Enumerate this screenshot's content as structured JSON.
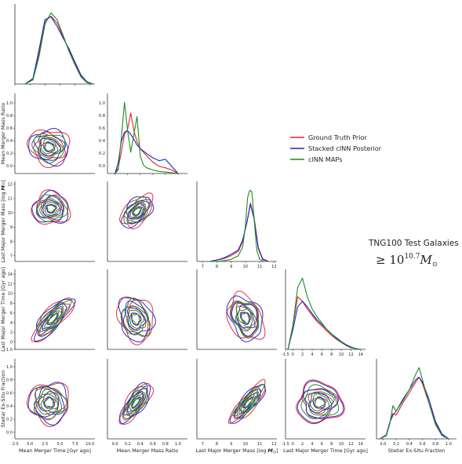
{
  "chart_data": {
    "type": "corner",
    "annotation": {
      "title": "TNG100 Test Galaxies",
      "threshold_prefix": "≥ 10",
      "threshold_exponent": "10.7",
      "threshold_symbol": "M",
      "threshold_subscript": "⊙"
    },
    "legend": {
      "placement": "right",
      "entries": [
        {
          "name": "Ground Truth Prior",
          "color": "#e4262a"
        },
        {
          "name": "Stacked cINN Posterior",
          "color": "#2222cc"
        },
        {
          "name": "cINN MAPs",
          "color": "#1c8c1c"
        }
      ]
    },
    "variables": [
      {
        "key": "merger_time",
        "label": "Mean Merger Time [Gyr ago]",
        "range": [
          -2.5,
          10.8
        ],
        "ticks": [
          -2.5,
          0.0,
          2.5,
          5.0,
          7.5,
          10.0
        ],
        "tick_labels": [
          "-2.5",
          "0.0",
          "2.5",
          "5.0",
          "7.5",
          "10.0"
        ]
      },
      {
        "key": "mass_ratio",
        "label": "Mean Merger Mass Ratio",
        "range": [
          -0.12,
          1.15
        ],
        "ticks": [
          0.0,
          0.2,
          0.4,
          0.6,
          0.8,
          1.0
        ],
        "tick_labels": [
          "0.0",
          "0.2",
          "0.4",
          "0.6",
          "0.8",
          "1.0"
        ]
      },
      {
        "key": "merger_mass",
        "label_main": "Last Major Merger Mass [log ",
        "label_sym": "M",
        "label_sub": "⊙",
        "label_end": "]",
        "range": [
          6.6,
          12.2
        ],
        "ticks": [
          7,
          8,
          9,
          10,
          11,
          12
        ],
        "tick_labels": [
          "7",
          "8",
          "9",
          "10",
          "11",
          "12"
        ]
      },
      {
        "key": "merger_lookback",
        "label": "Last Major Merger Time [Gyr ago]",
        "range": [
          -1.5,
          15
        ],
        "ticks": [
          -1.5,
          0,
          2,
          4,
          6,
          8,
          10,
          12,
          14
        ],
        "tick_labels": [
          "-1.5",
          "0",
          "2",
          "4",
          "6",
          "8",
          "10",
          "12",
          "14"
        ]
      },
      {
        "key": "exsitu",
        "label": "Stellar Ex-Situ Fraction",
        "range": [
          -0.1,
          1.12
        ],
        "ticks": [
          0.0,
          0.2,
          0.4,
          0.6,
          0.8,
          1.0
        ],
        "tick_labels": [
          "0.0",
          "0.2",
          "0.4",
          "0.6",
          "0.8",
          "1.0"
        ]
      }
    ],
    "marginals": [
      {
        "var": 0,
        "series": [
          {
            "color": "#e4262a",
            "x": [
              -0.8,
              0.5,
              1.5,
              2.5,
              3.5,
              4.5,
              5.5,
              6.5,
              7.5,
              8.5,
              9.5,
              10.5
            ],
            "y": [
              0.0,
              0.08,
              0.45,
              0.92,
              1.0,
              0.9,
              0.7,
              0.5,
              0.3,
              0.12,
              0.03,
              0.0
            ]
          },
          {
            "color": "#2222cc",
            "x": [
              -0.8,
              0.5,
              1.5,
              2.5,
              3.5,
              4.5,
              5.5,
              6.5,
              7.5,
              8.5,
              9.5,
              10.5
            ],
            "y": [
              0.0,
              0.08,
              0.5,
              0.95,
              0.99,
              0.85,
              0.68,
              0.52,
              0.32,
              0.13,
              0.03,
              0.0
            ]
          },
          {
            "color": "#1c8c1c",
            "x": [
              -0.8,
              0.5,
              1.5,
              2.5,
              3.5,
              4.5,
              5.5,
              6.5,
              7.5,
              8.5,
              9.5,
              10.5
            ],
            "y": [
              0.0,
              0.06,
              0.4,
              0.88,
              1.05,
              0.95,
              0.72,
              0.48,
              0.28,
              0.1,
              0.02,
              0.0
            ]
          }
        ]
      },
      {
        "var": 1,
        "series": [
          {
            "color": "#e4262a",
            "x": [
              0.0,
              0.05,
              0.1,
              0.15,
              0.2,
              0.25,
              0.3,
              0.35,
              0.4,
              0.5,
              0.6,
              0.7,
              0.8,
              0.9,
              1.0
            ],
            "y": [
              0.0,
              0.08,
              0.3,
              0.55,
              0.62,
              0.85,
              0.6,
              0.45,
              0.35,
              0.25,
              0.16,
              0.1,
              0.08,
              0.05,
              0.0
            ]
          },
          {
            "color": "#2222cc",
            "x": [
              0.0,
              0.05,
              0.1,
              0.15,
              0.2,
              0.25,
              0.3,
              0.35,
              0.4,
              0.5,
              0.6,
              0.7,
              0.8,
              0.9,
              1.0
            ],
            "y": [
              0.0,
              0.15,
              0.45,
              0.58,
              0.6,
              0.55,
              0.48,
              0.4,
              0.35,
              0.28,
              0.22,
              0.18,
              0.2,
              0.1,
              0.0
            ]
          },
          {
            "color": "#1c8c1c",
            "x": [
              0.0,
              0.05,
              0.1,
              0.15,
              0.2,
              0.25,
              0.3,
              0.35,
              0.4,
              0.45,
              0.5,
              0.6,
              0.7,
              0.8,
              0.9,
              1.0
            ],
            "y": [
              0.0,
              0.05,
              0.5,
              1.0,
              0.6,
              0.3,
              0.55,
              0.8,
              0.25,
              0.12,
              0.08,
              0.05,
              0.03,
              0.02,
              0.01,
              0.0
            ]
          }
        ]
      },
      {
        "var": 2,
        "series": [
          {
            "color": "#e4262a",
            "x": [
              7.5,
              8.0,
              8.5,
              9.0,
              9.5,
              9.8,
              10.1,
              10.35,
              10.6,
              10.9,
              11.2,
              11.6
            ],
            "y": [
              0.0,
              0.02,
              0.04,
              0.08,
              0.14,
              0.28,
              0.55,
              0.82,
              0.62,
              0.2,
              0.04,
              0.0
            ]
          },
          {
            "color": "#2222cc",
            "x": [
              7.5,
              8.0,
              8.5,
              9.0,
              9.5,
              9.8,
              10.1,
              10.35,
              10.6,
              10.9,
              11.2,
              11.6
            ],
            "y": [
              0.0,
              0.02,
              0.05,
              0.1,
              0.16,
              0.3,
              0.55,
              0.8,
              0.6,
              0.18,
              0.03,
              0.0
            ]
          },
          {
            "color": "#1c8c1c",
            "x": [
              7.5,
              8.0,
              8.5,
              9.0,
              9.5,
              9.8,
              10.0,
              10.15,
              10.3,
              10.45,
              10.6,
              10.8,
              11.0,
              11.3
            ],
            "y": [
              0.0,
              0.0,
              0.01,
              0.03,
              0.08,
              0.2,
              0.5,
              0.9,
              1.0,
              0.98,
              0.6,
              0.15,
              0.03,
              0.0
            ]
          }
        ]
      },
      {
        "var": 3,
        "series": [
          {
            "color": "#e4262a",
            "x": [
              -1.0,
              0.0,
              1.0,
              2.0,
              3.0,
              4.0,
              5.0,
              6.0,
              7.0,
              8.0,
              9.0,
              10.0,
              11.0,
              12.0,
              13.0,
              14.0
            ],
            "y": [
              0.0,
              0.3,
              0.68,
              0.62,
              0.52,
              0.44,
              0.36,
              0.3,
              0.24,
              0.18,
              0.13,
              0.09,
              0.06,
              0.03,
              0.01,
              0.0
            ]
          },
          {
            "color": "#2222cc",
            "x": [
              -1.0,
              0.0,
              1.0,
              2.0,
              3.0,
              4.0,
              5.0,
              6.0,
              7.0,
              8.0,
              9.0,
              10.0,
              11.0,
              12.0,
              13.0,
              14.0
            ],
            "y": [
              0.0,
              0.25,
              0.55,
              0.62,
              0.55,
              0.46,
              0.38,
              0.32,
              0.26,
              0.2,
              0.15,
              0.1,
              0.06,
              0.03,
              0.01,
              0.0
            ]
          },
          {
            "color": "#1c8c1c",
            "x": [
              -1.0,
              0.0,
              1.0,
              2.0,
              3.0,
              4.0,
              5.0,
              6.0,
              7.0,
              8.0,
              9.0,
              10.0,
              11.0,
              12.0,
              13.0,
              14.0
            ],
            "y": [
              0.0,
              0.3,
              0.8,
              0.92,
              0.68,
              0.52,
              0.42,
              0.34,
              0.26,
              0.2,
              0.14,
              0.09,
              0.05,
              0.02,
              0.01,
              0.0
            ]
          }
        ]
      },
      {
        "var": 4,
        "series": [
          {
            "color": "#e4262a",
            "x": [
              -0.05,
              0.05,
              0.1,
              0.15,
              0.2,
              0.3,
              0.4,
              0.5,
              0.55,
              0.6,
              0.7,
              0.8,
              0.9,
              1.0
            ],
            "y": [
              0.0,
              0.05,
              0.2,
              0.32,
              0.3,
              0.45,
              0.58,
              0.72,
              0.78,
              0.7,
              0.45,
              0.2,
              0.05,
              0.0
            ]
          },
          {
            "color": "#2222cc",
            "x": [
              -0.05,
              0.05,
              0.1,
              0.15,
              0.2,
              0.3,
              0.4,
              0.5,
              0.55,
              0.6,
              0.7,
              0.8,
              0.9,
              1.0
            ],
            "y": [
              0.0,
              0.05,
              0.2,
              0.3,
              0.35,
              0.48,
              0.62,
              0.75,
              0.78,
              0.72,
              0.5,
              0.22,
              0.06,
              0.0
            ]
          },
          {
            "color": "#1c8c1c",
            "x": [
              -0.05,
              0.05,
              0.1,
              0.15,
              0.2,
              0.3,
              0.4,
              0.5,
              0.55,
              0.6,
              0.7,
              0.8,
              0.9,
              1.0
            ],
            "y": [
              0.0,
              0.04,
              0.18,
              0.42,
              0.35,
              0.5,
              0.62,
              0.82,
              0.9,
              0.75,
              0.45,
              0.18,
              0.04,
              0.0
            ]
          }
        ]
      }
    ],
    "joint_contours": [
      {
        "x_var": 0,
        "y_var": 1,
        "center": [
          3.2,
          0.3
        ],
        "spread": [
          2.4,
          0.2
        ],
        "corr": -0.1
      },
      {
        "x_var": 0,
        "y_var": 2,
        "center": [
          3.5,
          10.3
        ],
        "spread": [
          2.2,
          0.8
        ],
        "corr": 0.0
      },
      {
        "x_var": 1,
        "y_var": 2,
        "center": [
          0.35,
          10.1
        ],
        "spread": [
          0.18,
          0.8
        ],
        "corr": 0.5
      },
      {
        "x_var": 0,
        "y_var": 3,
        "center": [
          3.8,
          4.8
        ],
        "spread": [
          2.4,
          3.2
        ],
        "corr": 0.8
      },
      {
        "x_var": 1,
        "y_var": 3,
        "center": [
          0.33,
          4.8
        ],
        "spread": [
          0.2,
          3.3
        ],
        "corr": -0.2
      },
      {
        "x_var": 2,
        "y_var": 3,
        "center": [
          10.0,
          5.0
        ],
        "spread": [
          0.9,
          3.3
        ],
        "corr": -0.3
      },
      {
        "x_var": 0,
        "y_var": 4,
        "center": [
          3.2,
          0.45
        ],
        "spread": [
          2.4,
          0.22
        ],
        "corr": 0.0
      },
      {
        "x_var": 1,
        "y_var": 4,
        "center": [
          0.33,
          0.45
        ],
        "spread": [
          0.18,
          0.22
        ],
        "corr": 0.75
      },
      {
        "x_var": 2,
        "y_var": 4,
        "center": [
          10.2,
          0.45
        ],
        "spread": [
          0.9,
          0.22
        ],
        "corr": 0.85
      },
      {
        "x_var": 3,
        "y_var": 4,
        "center": [
          5.5,
          0.45
        ],
        "spread": [
          3.3,
          0.22
        ],
        "corr": 0.0
      }
    ],
    "contour_levels": [
      0.4,
      0.75,
      1.1,
      1.5
    ]
  }
}
